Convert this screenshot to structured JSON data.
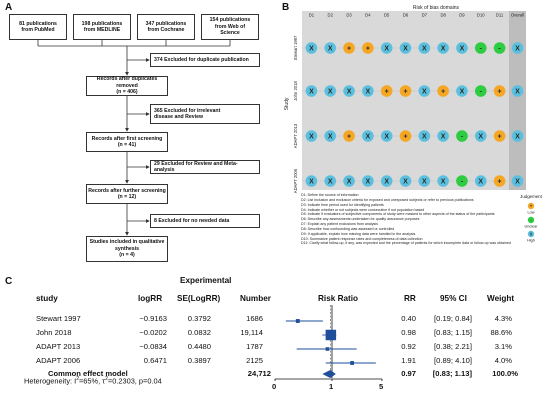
{
  "panels": {
    "a": "A",
    "b": "B",
    "c": "C"
  },
  "flow": {
    "sources": [
      {
        "count": "81 publications",
        "from": "from PubMed"
      },
      {
        "count": "198 publications",
        "from": "from MEDLINE"
      },
      {
        "count": "347 publications",
        "from": "from Cochrane"
      },
      {
        "count": "154 publications",
        "from": "from Web of",
        "from2": "Science"
      }
    ],
    "exclusions": [
      {
        "line1": "374 Excluded for duplicate publication",
        "line2": ""
      },
      {
        "line1": "365 Excluded for irrelevant",
        "line2": "disease and Review"
      },
      {
        "line1": "29 Excluded for Review and Meta-analysis",
        "line2": ""
      },
      {
        "line1": "8 Excluded for no needed data",
        "line2": ""
      }
    ],
    "steps": [
      {
        "line1": "Records after duplicates removed",
        "line2": "(n = 406)"
      },
      {
        "line1": "Records after first screening",
        "line2": "(n = 41)"
      },
      {
        "line1": "Records after further screening",
        "line2": "(n = 12)"
      },
      {
        "line1": "Studies included in qualitative",
        "line2": "synthesis",
        "line3": "(n = 4)"
      }
    ]
  },
  "rob": {
    "title": "Risk of bias domains",
    "domains": [
      "D1",
      "D2",
      "D3",
      "D4",
      "D5",
      "D6",
      "D7",
      "D8",
      "D9",
      "D10",
      "D11",
      "Overall"
    ],
    "ylabel": "Study",
    "studies": [
      {
        "name": "Stewart 1997",
        "judgements": [
          "X",
          "X",
          "+",
          "+",
          "X",
          "X",
          "X",
          "X",
          "X",
          "-",
          "-",
          "X"
        ]
      },
      {
        "name": "John 2018",
        "judgements": [
          "X",
          "X",
          "X",
          "X",
          "+",
          "+",
          "X",
          "+",
          "X",
          "-",
          "+",
          "X"
        ]
      },
      {
        "name": "ADAPT 2013",
        "judgements": [
          "X",
          "X",
          "+",
          "X",
          "X",
          "+",
          "X",
          "X",
          "-",
          "X",
          "+",
          "X"
        ]
      },
      {
        "name": "ADAPT 2006",
        "judgements": [
          "X",
          "X",
          "X",
          "X",
          "X",
          "X",
          "X",
          "X",
          "-",
          "X",
          "+",
          "X"
        ]
      }
    ],
    "colors": {
      "low": "#f5a623",
      "unclear": "#2ecc40",
      "high": "#5bc0de"
    },
    "legend_title": "Judgement",
    "legend": [
      {
        "symbol": "+",
        "label": "Low"
      },
      {
        "symbol": "-",
        "label": "Unclear"
      },
      {
        "symbol": "X",
        "label": "High"
      }
    ],
    "notes": [
      "D1: Define the source of information",
      "D2: List inclusion and exclusion criteria for exposed and unexposed subjects or refer to previous publications",
      "D3: Indicate time period used for identifying patients",
      "D4: Indicate whether or not subjects were consecutive if not population based",
      "D5: Indicate if evaluators of subjective components of study were masked to other aspects of the status of the participants",
      "D6: Describe any assessments undertaken for quality assurance purposes",
      "D7: Explain any patient exclusions from analysis",
      "D8: Describe how confounding was assessed or controlled",
      "D9: If applicable, explain how missing data were handled in the analysis",
      "D10: Summarize patient response rates and completeness of data collection",
      "D11: Clarify what follow-up, if any, was expected and the percentage of patients for which incomplete data or follow-up was obtained"
    ]
  },
  "forest": {
    "group_header": "Experimental",
    "headers": {
      "study": "study",
      "logrr": "logRR",
      "se": "SE(LogRR)",
      "number": "Number",
      "rr_plot": "Risk Ratio",
      "rr": "RR",
      "ci": "95% CI",
      "weight": "Weight"
    },
    "rows": [
      {
        "study": "Stewart 1997",
        "logrr": "−0.9163",
        "se": "0.3792",
        "number": "1686",
        "rr": "0.40",
        "ci": "[0.19; 0.84]",
        "weight": "4.3%",
        "rr_value": 0.4,
        "lo": 0.19,
        "hi": 0.84,
        "w": 4.3
      },
      {
        "study": "John 2018",
        "logrr": "−0.0202",
        "se": "0.0832",
        "number": "19,114",
        "rr": "0.98",
        "ci": "[0.83; 1.15]",
        "weight": "88.6%",
        "rr_value": 0.98,
        "lo": 0.83,
        "hi": 1.15,
        "w": 88.6
      },
      {
        "study": "ADAPT 2013",
        "logrr": "−0.0834",
        "se": "0.4480",
        "number": "1787",
        "rr": "0.92",
        "ci": "[0.38; 2.21]",
        "weight": "3.1%",
        "rr_value": 0.92,
        "lo": 0.38,
        "hi": 2.21,
        "w": 3.1
      },
      {
        "study": "ADAPT 2006",
        "logrr": "0.6471",
        "se": "0.3897",
        "number": "2125",
        "rr": "1.91",
        "ci": "[0.89; 4.10]",
        "weight": "4.0%",
        "rr_value": 1.91,
        "lo": 0.89,
        "hi": 4.1,
        "w": 4.0
      }
    ],
    "summary": {
      "label": "Common effect model",
      "number": "24,712",
      "rr": "0.97",
      "ci": "[0.83; 1.13]",
      "weight": "100.0%",
      "rr_value": 0.97,
      "lo": 0.83,
      "hi": 1.13
    },
    "heterogeneity_prefix": "Heterogeneity: I",
    "heterogeneity_rest": "=65%, τ",
    "heterogeneity_end": "=0.2303, p=0.04",
    "sup": "2",
    "axis_ticks": [
      "0",
      "1",
      "5"
    ]
  },
  "chart_data": {
    "type": "scatter",
    "title": "Risk Ratio",
    "xlabel": "",
    "ylabel": "",
    "categories": [
      "Stewart 1997",
      "John 2018",
      "ADAPT 2013",
      "ADAPT 2006",
      "Common effect model"
    ],
    "x": [
      0.4,
      0.98,
      0.92,
      1.91,
      0.97
    ],
    "ci_low": [
      0.19,
      0.83,
      0.38,
      0.89,
      0.83
    ],
    "ci_high": [
      0.84,
      1.15,
      2.21,
      4.1,
      1.13
    ],
    "weights": [
      4.3,
      88.6,
      3.1,
      4.0,
      100.0
    ],
    "xticks": [
      0,
      1,
      5
    ],
    "reference_line": 1
  }
}
